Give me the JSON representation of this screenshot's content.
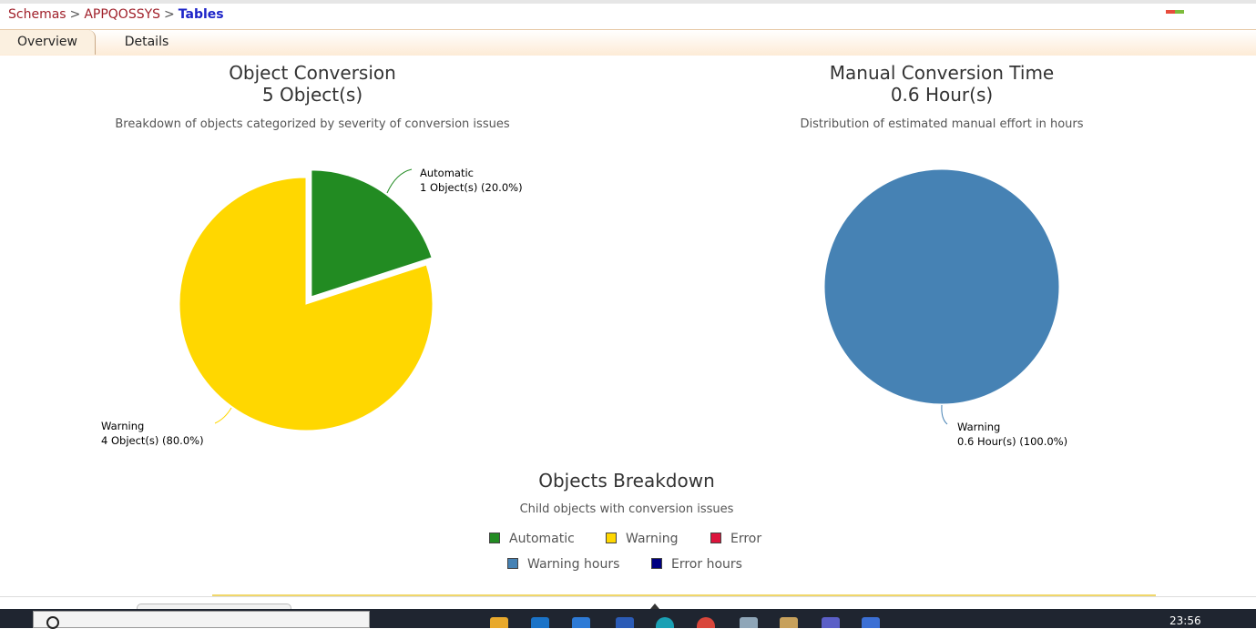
{
  "breadcrumb": {
    "items": [
      "Schemas",
      "APPQOSSYS"
    ],
    "separator": ">",
    "current": "Tables"
  },
  "tabs": [
    {
      "label": "Overview",
      "active": true
    },
    {
      "label": "Details",
      "active": false
    }
  ],
  "object_conversion": {
    "title": "Object Conversion",
    "total": "5 Object(s)",
    "subtitle": "Breakdown of objects categorized by severity of conversion issues",
    "labels": {
      "automatic_name": "Automatic",
      "automatic_value": "1 Object(s) (20.0%)",
      "warning_name": "Warning",
      "warning_value": "4 Object(s) (80.0%)"
    }
  },
  "manual_time": {
    "title": "Manual Conversion Time",
    "total": "0.6 Hour(s)",
    "subtitle": "Distribution of estimated manual effort in hours",
    "labels": {
      "warning_name": "Warning",
      "warning_value": "0.6 Hour(s) (100.0%)"
    }
  },
  "breakdown": {
    "title": "Objects Breakdown",
    "subtitle": "Child objects with conversion issues",
    "legend": [
      {
        "label": "Automatic",
        "color": "#228b22"
      },
      {
        "label": "Warning",
        "color": "#ffd700"
      },
      {
        "label": "Error",
        "color": "#dc143c"
      },
      {
        "label": "Warning hours",
        "color": "#4682b4"
      },
      {
        "label": "Error hours",
        "color": "#000080"
      }
    ]
  },
  "taskbar": {
    "time": "23:56"
  },
  "chart_data": [
    {
      "type": "pie",
      "title": "Object Conversion",
      "categories": [
        "Automatic",
        "Warning"
      ],
      "values": [
        1,
        4
      ],
      "colors": [
        "#228b22",
        "#ffd700"
      ]
    },
    {
      "type": "pie",
      "title": "Manual Conversion Time",
      "categories": [
        "Warning"
      ],
      "values": [
        0.6
      ],
      "colors": [
        "#4682b4"
      ]
    }
  ]
}
